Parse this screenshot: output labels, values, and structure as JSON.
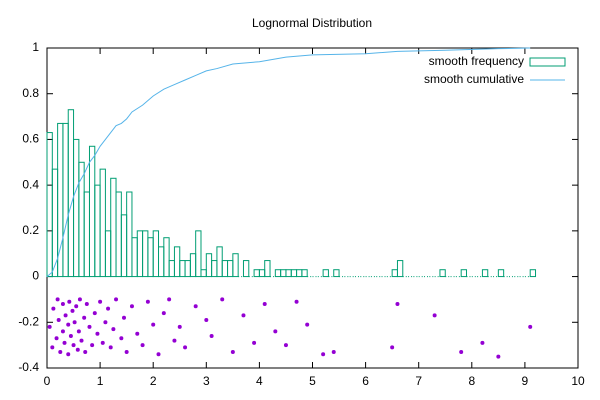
{
  "chart_data": {
    "type": "mixed",
    "title": "Lognormal Distribution",
    "xlim": [
      0,
      10
    ],
    "ylim": [
      -0.4,
      1
    ],
    "xticks": [
      0,
      1,
      2,
      3,
      4,
      5,
      6,
      7,
      8,
      9,
      10
    ],
    "yticks": [
      -0.4,
      -0.2,
      0,
      0.2,
      0.4,
      0.6,
      0.8,
      1
    ],
    "legend": "top-right",
    "series": [
      {
        "type": "histogram",
        "name": "smooth frequency",
        "color": "#009e73",
        "bins": [
          0,
          0.1,
          0.2,
          0.3,
          0.4,
          0.5,
          0.6,
          0.7,
          0.8,
          0.9,
          1,
          1.1,
          1.2,
          1.3,
          1.4,
          1.5,
          1.6,
          1.7,
          1.8,
          1.9,
          2,
          2.1,
          2.2,
          2.3,
          2.4,
          2.5,
          2.6,
          2.7,
          2.8,
          2.9,
          3,
          3.1,
          3.2,
          3.3,
          3.4,
          3.5,
          3.6,
          3.7,
          3.8,
          3.9,
          4,
          4.1,
          4.2,
          4.3,
          4.4,
          4.5,
          4.6,
          4.7,
          4.8,
          4.9,
          5,
          5.1,
          5.2,
          5.3,
          5.4,
          5.5,
          5.6,
          5.7,
          5.8,
          5.9,
          6,
          6.1,
          6.2,
          6.3,
          6.4,
          6.5,
          6.6,
          6.7,
          6.8,
          6.9,
          7,
          7.1,
          7.2,
          7.3,
          7.4,
          7.5,
          7.6,
          7.7,
          7.8,
          7.9,
          8,
          8.1,
          8.2,
          8.3,
          8.4,
          8.5,
          8.6,
          8.7,
          8.8,
          8.9,
          9,
          9.1,
          9.2
        ],
        "values": [
          0.63,
          0.47,
          0.67,
          0.67,
          0.73,
          0.6,
          0.5,
          0.37,
          0.57,
          0.4,
          0.47,
          0.2,
          0.43,
          0.37,
          0.27,
          0.37,
          0.17,
          0.2,
          0.2,
          0.17,
          0.2,
          0.13,
          0.17,
          0.07,
          0.13,
          0.07,
          0.07,
          0.1,
          0.2,
          0.03,
          0.1,
          0.07,
          0.13,
          0.07,
          0.07,
          0.1,
          0,
          0.07,
          0,
          0.03,
          0.03,
          0.07,
          0,
          0.03,
          0.03,
          0.03,
          0.03,
          0.03,
          0.03,
          0,
          0,
          0,
          0.03,
          0,
          0.03,
          0,
          0,
          0,
          0,
          0,
          0,
          0,
          0,
          0,
          0,
          0.03,
          0.07,
          0,
          0,
          0,
          0,
          0,
          0,
          0,
          0.03,
          0,
          0,
          0,
          0.03,
          0,
          0,
          0,
          0.03,
          0,
          0,
          0.03,
          0,
          0,
          0,
          0,
          0,
          0.03
        ]
      },
      {
        "type": "line",
        "name": "smooth cumulative",
        "color": "#56b4e9",
        "x": [
          0,
          0.1,
          0.2,
          0.3,
          0.4,
          0.5,
          0.6,
          0.7,
          0.8,
          0.9,
          1,
          1.1,
          1.2,
          1.3,
          1.4,
          1.5,
          1.6,
          1.8,
          2,
          2.2,
          2.4,
          2.6,
          2.8,
          3,
          3.2,
          3.5,
          4,
          4.5,
          5,
          6,
          6.6,
          7.5,
          8.5,
          9.1
        ],
        "values": [
          0,
          0.02,
          0.08,
          0.17,
          0.27,
          0.35,
          0.41,
          0.45,
          0.5,
          0.53,
          0.57,
          0.6,
          0.63,
          0.66,
          0.67,
          0.69,
          0.72,
          0.75,
          0.79,
          0.82,
          0.84,
          0.86,
          0.88,
          0.9,
          0.91,
          0.93,
          0.94,
          0.96,
          0.97,
          0.975,
          0.985,
          0.99,
          0.997,
          1
        ]
      },
      {
        "type": "scatter",
        "color": "#9400d3",
        "x": [
          0.05,
          0.1,
          0.12,
          0.18,
          0.2,
          0.22,
          0.25,
          0.3,
          0.3,
          0.33,
          0.35,
          0.4,
          0.4,
          0.42,
          0.45,
          0.48,
          0.5,
          0.52,
          0.55,
          0.58,
          0.6,
          0.62,
          0.65,
          0.7,
          0.72,
          0.75,
          0.8,
          0.85,
          0.9,
          0.95,
          1,
          1.05,
          1.1,
          1.15,
          1.2,
          1.25,
          1.3,
          1.4,
          1.45,
          1.5,
          1.6,
          1.7,
          1.8,
          1.9,
          2,
          2.1,
          2.2,
          2.3,
          2.4,
          2.5,
          2.6,
          2.8,
          3,
          3.1,
          3.3,
          3.5,
          3.7,
          3.9,
          4.1,
          4.3,
          4.5,
          4.7,
          4.9,
          5.2,
          5.4,
          6.5,
          6.6,
          7.3,
          7.8,
          8.2,
          8.5,
          9.1
        ],
        "values": [
          -0.22,
          -0.31,
          -0.14,
          -0.27,
          -0.1,
          -0.19,
          -0.33,
          -0.24,
          -0.12,
          -0.29,
          -0.17,
          -0.21,
          -0.34,
          -0.11,
          -0.26,
          -0.15,
          -0.3,
          -0.2,
          -0.13,
          -0.32,
          -0.24,
          -0.1,
          -0.28,
          -0.18,
          -0.33,
          -0.12,
          -0.22,
          -0.3,
          -0.16,
          -0.25,
          -0.11,
          -0.29,
          -0.2,
          -0.14,
          -0.31,
          -0.23,
          -0.1,
          -0.27,
          -0.18,
          -0.33,
          -0.13,
          -0.25,
          -0.3,
          -0.11,
          -0.21,
          -0.34,
          -0.16,
          -0.1,
          -0.28,
          -0.22,
          -0.31,
          -0.13,
          -0.19,
          -0.26,
          -0.1,
          -0.33,
          -0.17,
          -0.29,
          -0.12,
          -0.24,
          -0.3,
          -0.11,
          -0.21,
          -0.34,
          -0.33,
          -0.31,
          -0.12,
          -0.17,
          -0.33,
          -0.29,
          -0.35,
          -0.22
        ]
      }
    ]
  }
}
